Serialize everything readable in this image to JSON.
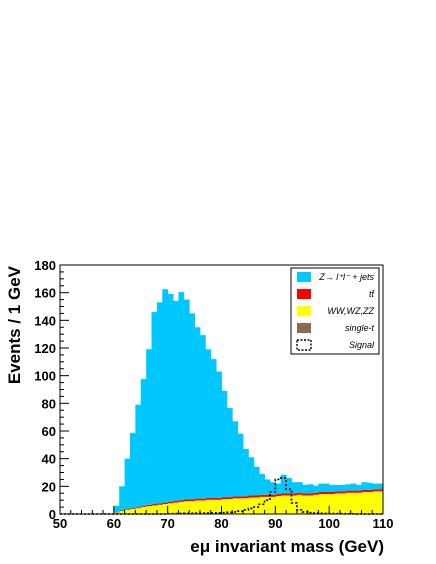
{
  "chart_data": {
    "type": "bar",
    "stacked": true,
    "xlabel": "eμ invariant mass (GeV)",
    "ylabel": "Events / 1 GeV",
    "xlim": [
      50,
      110
    ],
    "ylim": [
      0,
      180
    ],
    "xticks": [
      50,
      60,
      70,
      80,
      90,
      100,
      110
    ],
    "yticks": [
      0,
      20,
      40,
      60,
      80,
      100,
      120,
      140,
      160,
      180
    ],
    "bin_width": 1,
    "bin_low_edges": [
      50,
      51,
      52,
      53,
      54,
      55,
      56,
      57,
      58,
      59,
      60,
      61,
      62,
      63,
      64,
      65,
      66,
      67,
      68,
      69,
      70,
      71,
      72,
      73,
      74,
      75,
      76,
      77,
      78,
      79,
      80,
      81,
      82,
      83,
      84,
      85,
      86,
      87,
      88,
      89,
      90,
      91,
      92,
      93,
      94,
      95,
      96,
      97,
      98,
      99,
      100,
      101,
      102,
      103,
      104,
      105,
      106,
      107,
      108,
      109
    ],
    "legend_position": "top-right",
    "series": [
      {
        "name": "single-t",
        "color": "#8b6a55",
        "values": [
          0,
          0,
          0,
          0,
          0,
          0,
          0,
          0,
          0,
          0,
          0.1,
          0.1,
          0.1,
          0.1,
          0.2,
          0.2,
          0.2,
          0.2,
          0.2,
          0.2,
          0.3,
          0.3,
          0.3,
          0.3,
          0.3,
          0.3,
          0.3,
          0.3,
          0.3,
          0.3,
          0.3,
          0.3,
          0.3,
          0.3,
          0.4,
          0.4,
          0.4,
          0.4,
          0.4,
          0.4,
          0.4,
          0.4,
          0.4,
          0.4,
          0.4,
          0.4,
          0.4,
          0.4,
          0.4,
          0.4,
          0.4,
          0.4,
          0.4,
          0.4,
          0.4,
          0.4,
          0.4,
          0.4,
          0.4,
          0.4
        ]
      },
      {
        "name": "WW,WZ,ZZ",
        "color": "#ffff00",
        "values": [
          0,
          0,
          0,
          0,
          0,
          0,
          0,
          0,
          0,
          0,
          1,
          2,
          3,
          3.5,
          4,
          5,
          5.5,
          6,
          6.5,
          7,
          7.5,
          8,
          8.5,
          9,
          9,
          9.5,
          9.5,
          10,
          10,
          10,
          10.5,
          10.5,
          11,
          11,
          11,
          11.5,
          11.5,
          12,
          12,
          12,
          12.5,
          13,
          13,
          13,
          13.5,
          13,
          13,
          13.5,
          14,
          14,
          14,
          14.5,
          14.5,
          15,
          15,
          15,
          15.5,
          15.5,
          16,
          16
        ]
      },
      {
        "name": "tt̄",
        "color": "#ff0000",
        "values": [
          0,
          0,
          0,
          0,
          0,
          0,
          0,
          0,
          0,
          0,
          0.3,
          0.4,
          0.5,
          0.6,
          0.7,
          0.8,
          0.9,
          1,
          1,
          1,
          1.1,
          1.1,
          1.2,
          1.2,
          1.2,
          1.3,
          1.3,
          1.3,
          1.3,
          1.4,
          1.4,
          1.4,
          1.4,
          1.4,
          1.5,
          1.5,
          1.5,
          1.5,
          1.5,
          1.5,
          1.5,
          1.5,
          1.5,
          1.5,
          1.5,
          1.5,
          1.5,
          1.5,
          1.5,
          1.5,
          1.5,
          1.5,
          1.5,
          1.5,
          1.5,
          1.5,
          1.5,
          1.5,
          1.5,
          1.5
        ]
      },
      {
        "name": "Z→ l⁺l⁻ + jets",
        "color": "#00c8ff",
        "values": [
          0,
          0,
          0,
          0,
          0,
          0,
          0,
          0,
          0,
          0,
          4.6,
          17.5,
          36.4,
          54.3,
          74.1,
          91.5,
          112.5,
          138.8,
          145.3,
          154.3,
          150.1,
          144.6,
          150.4,
          144.5,
          134.5,
          123.9,
          118.2,
          107.4,
          100.4,
          91.3,
          76.8,
          64.4,
          54.3,
          45.3,
          34.1,
          27.6,
          20.6,
          15.1,
          11.1,
          9.1,
          7.6,
          13.5,
          11.1,
          8.1,
          7.6,
          6.1,
          6.6,
          5.1,
          6.1,
          6.1,
          5.1,
          4.6,
          4.6,
          4.6,
          5.1,
          4.1,
          5.6,
          5.1,
          4.1,
          4.1
        ]
      },
      {
        "name": "Signal",
        "style": "dotted-line",
        "values": [
          0,
          0,
          0,
          0,
          0,
          0,
          0,
          0,
          0,
          0,
          0,
          0,
          0,
          0,
          0,
          0,
          0,
          0,
          0,
          0,
          0.2,
          0.3,
          0.4,
          0.5,
          0.5,
          0.6,
          0.6,
          0.7,
          0.8,
          0.9,
          1,
          1.2,
          1.5,
          2,
          3,
          4,
          5,
          7,
          10,
          16,
          25,
          26,
          18,
          8,
          3,
          1.5,
          1,
          0.7,
          0.5,
          0.4,
          0.3,
          0.2,
          0.2,
          0.1,
          0.1,
          0,
          0,
          0,
          0,
          0
        ]
      }
    ],
    "legend": [
      {
        "label": "Z→ l⁺l⁻ + jets",
        "swatch": "#00c8ff"
      },
      {
        "label": "tt̄",
        "swatch": "#ff0000"
      },
      {
        "label": "WW,WZ,ZZ",
        "swatch": "#ffff00"
      },
      {
        "label": "single-t",
        "swatch": "#8b6a55"
      },
      {
        "label": "Signal",
        "swatch": "dotted"
      }
    ]
  }
}
